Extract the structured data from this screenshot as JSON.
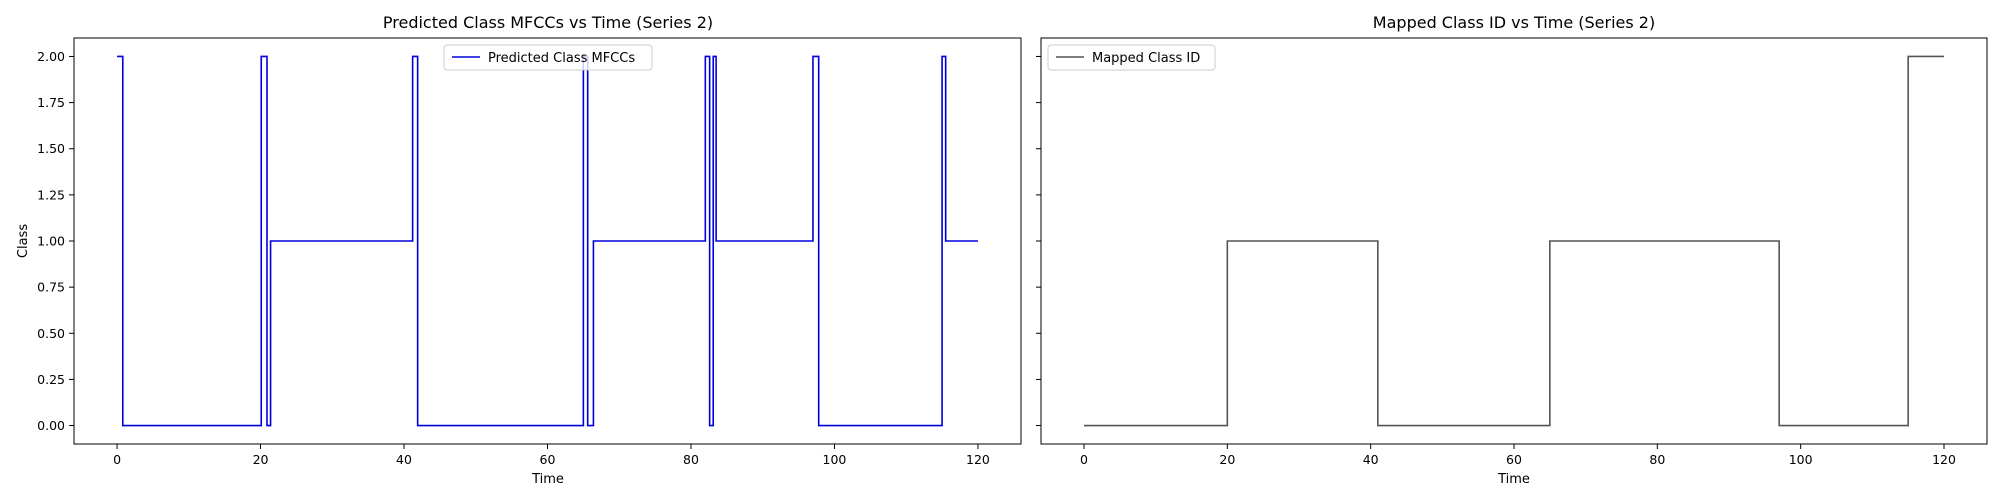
{
  "chart_data": [
    {
      "type": "line",
      "step": true,
      "title": "Predicted Class MFCCs vs Time (Series 2)",
      "xlabel": "Time",
      "ylabel": "Class",
      "xlim": [
        -6,
        126
      ],
      "ylim": [
        -0.1,
        2.1
      ],
      "xticks": [
        0,
        20,
        40,
        60,
        80,
        100,
        120
      ],
      "yticks": [
        0.0,
        0.25,
        0.5,
        0.75,
        1.0,
        1.25,
        1.5,
        1.75,
        2.0
      ],
      "ytick_labels": [
        "0.00",
        "0.25",
        "0.50",
        "0.75",
        "1.00",
        "1.25",
        "1.50",
        "1.75",
        "2.00"
      ],
      "grid": false,
      "legend_position": "top-center",
      "series": [
        {
          "name": "Predicted Class MFCCs",
          "color": "#0000dd",
          "x": [
            0,
            0.8,
            20.1,
            20.9,
            21.4,
            41.2,
            41.9,
            65.0,
            65.6,
            66.4,
            82.0,
            82.6,
            83.1,
            83.5,
            97.0,
            97.8,
            115.0,
            115.5,
            120
          ],
          "y": [
            2,
            0,
            2,
            0,
            1,
            2,
            0,
            2,
            0,
            1,
            2,
            0,
            2,
            1,
            2,
            0,
            2,
            1,
            1
          ]
        }
      ]
    },
    {
      "type": "line",
      "step": true,
      "title": "Mapped Class ID vs Time (Series 2)",
      "xlabel": "Time",
      "ylabel": "",
      "xlim": [
        -6,
        126
      ],
      "ylim": [
        -0.1,
        2.1
      ],
      "xticks": [
        0,
        20,
        40,
        60,
        80,
        100,
        120
      ],
      "yticks": [
        0.0,
        0.25,
        0.5,
        0.75,
        1.0,
        1.25,
        1.5,
        1.75,
        2.0
      ],
      "ytick_labels": [],
      "grid": false,
      "legend_position": "top-left",
      "series": [
        {
          "name": "Mapped Class ID",
          "color": "#555555",
          "x": [
            0,
            20,
            41,
            65,
            97,
            115,
            120
          ],
          "y": [
            0,
            1,
            0,
            1,
            0,
            2,
            2
          ]
        }
      ]
    }
  ]
}
